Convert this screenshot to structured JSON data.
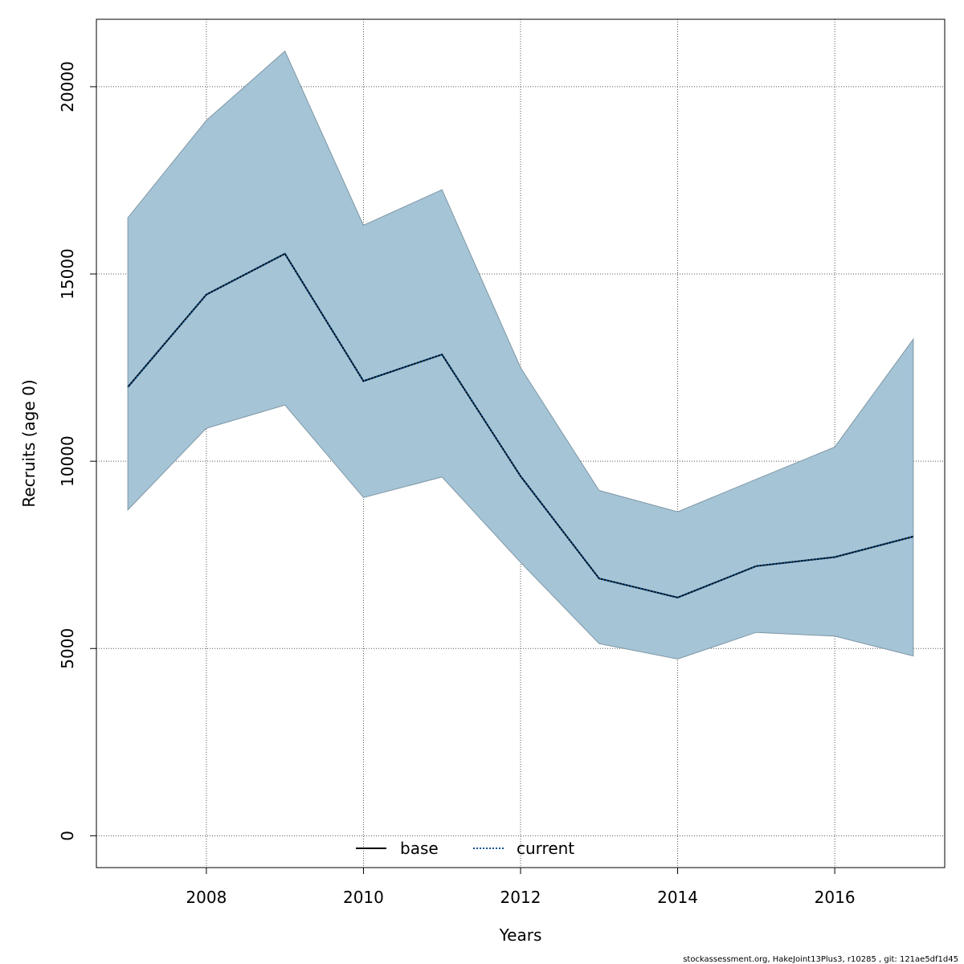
{
  "chart_data": {
    "type": "area",
    "xlabel": "Years",
    "ylabel": "Recruits (age 0)",
    "xlim": [
      2006.6,
      2017.4
    ],
    "ylim": [
      -850,
      21800
    ],
    "x_ticks": [
      2008,
      2010,
      2012,
      2014,
      2016
    ],
    "y_ticks": [
      0,
      5000,
      10000,
      15000,
      20000
    ],
    "grid": true,
    "x": [
      2007,
      2008,
      2009,
      2010,
      2011,
      2012,
      2013,
      2014,
      2015,
      2016,
      2017
    ],
    "interval": {
      "upper": [
        16500,
        19100,
        20950,
        16300,
        17250,
        12500,
        9220,
        8650,
        9520,
        10380,
        13260
      ],
      "lower": [
        8700,
        10880,
        11500,
        9030,
        9580,
        7300,
        5130,
        4720,
        5430,
        5330,
        4800
      ],
      "color": "#a5c4d6"
    },
    "series": [
      {
        "name": "base",
        "values": [
          11980,
          14450,
          15540,
          12140,
          12850,
          9600,
          6870,
          6360,
          7200,
          7440,
          7990
        ],
        "color": "#000000",
        "dash": "solid"
      },
      {
        "name": "current",
        "values": [
          11980,
          14450,
          15540,
          12140,
          12850,
          9600,
          6870,
          6360,
          7200,
          7440,
          7990
        ],
        "color": "#0b5394",
        "dash": "dotted"
      }
    ],
    "legend_position": "bottom-center"
  },
  "footnote": "stockassessment.org, HakeJoint13Plus3, r10285 , git: 121ae5df1d45"
}
